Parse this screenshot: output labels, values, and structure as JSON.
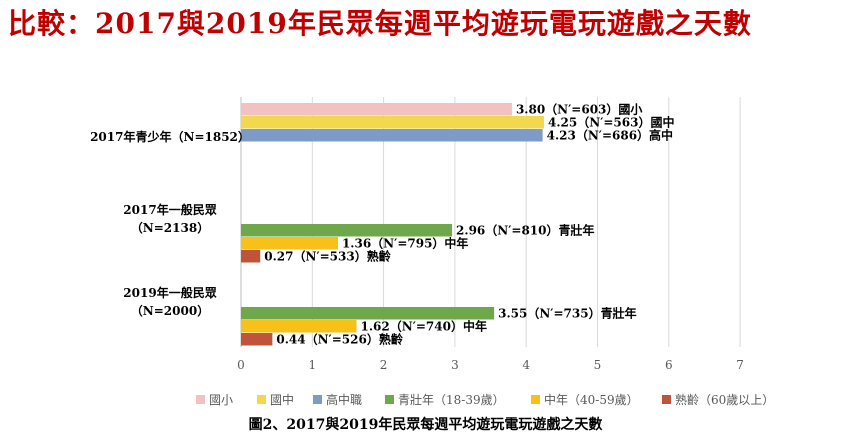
{
  "title": "比較：2017與2019年民眾每週平均遊玩電玩遊戲之天數",
  "caption": "圖2、2017與2019年民眾每週平均遊玩電玩遊戲之天數",
  "colors": {
    "primary": "#f4c1c3",
    "junior": "#f2d84e",
    "senior": "#7e9bc7",
    "young_adult": "#6ea84a",
    "middle_age": "#f8c11a",
    "elderly": "#c0543a",
    "grid": "#d9d9d9",
    "title": "#c00000"
  },
  "chart_data": {
    "type": "bar",
    "orientation": "horizontal",
    "title": "比較：2017與2019年民眾每週平均遊玩電玩遊戲之天數",
    "xlim": [
      0,
      7
    ],
    "x_ticks": [
      "0",
      "1",
      "2",
      "3",
      "4",
      "5",
      "6",
      "7"
    ],
    "grid": true,
    "legend_position": "bottom",
    "legend": [
      "國小",
      "國中",
      "高中職",
      "青壯年（18-39歲）",
      "中年（40-59歲）",
      "熟齡（60歲以上）"
    ],
    "groups": [
      {
        "label_lines": [
          "2017年青少年（N=1852）"
        ],
        "bars": [
          {
            "series": "國小",
            "value": 3.8,
            "label": "3.80（N′=603）國小",
            "color_key": "primary"
          },
          {
            "series": "國中",
            "value": 4.25,
            "label": "4.25（N′=563）國中",
            "color_key": "junior"
          },
          {
            "series": "高中職",
            "value": 4.23,
            "label": "4.23（N′=686）高中",
            "color_key": "senior"
          }
        ]
      },
      {
        "label_lines": [
          "2017年一般民眾",
          "（N=2138）"
        ],
        "bars": [
          {
            "series": "青壯年（18-39歲）",
            "value": 2.96,
            "label": "2.96（N′=810）青壯年",
            "color_key": "young_adult"
          },
          {
            "series": "中年（40-59歲）",
            "value": 1.36,
            "label": "1.36（N′=795）中年",
            "color_key": "middle_age"
          },
          {
            "series": "熟齡（60歲以上）",
            "value": 0.27,
            "label": "0.27（N′=533）熟齡",
            "color_key": "elderly"
          }
        ]
      },
      {
        "label_lines": [
          "2019年一般民眾",
          "（N=2000）"
        ],
        "bars": [
          {
            "series": "青壯年（18-39歲）",
            "value": 3.55,
            "label": "3.55（N′=735）青壯年",
            "color_key": "young_adult"
          },
          {
            "series": "中年（40-59歲）",
            "value": 1.62,
            "label": "1.62（N′=740）中年",
            "color_key": "middle_age"
          },
          {
            "series": "熟齡（60歲以上）",
            "value": 0.44,
            "label": "0.44（N′=526）熟齡",
            "color_key": "elderly"
          }
        ]
      }
    ]
  }
}
